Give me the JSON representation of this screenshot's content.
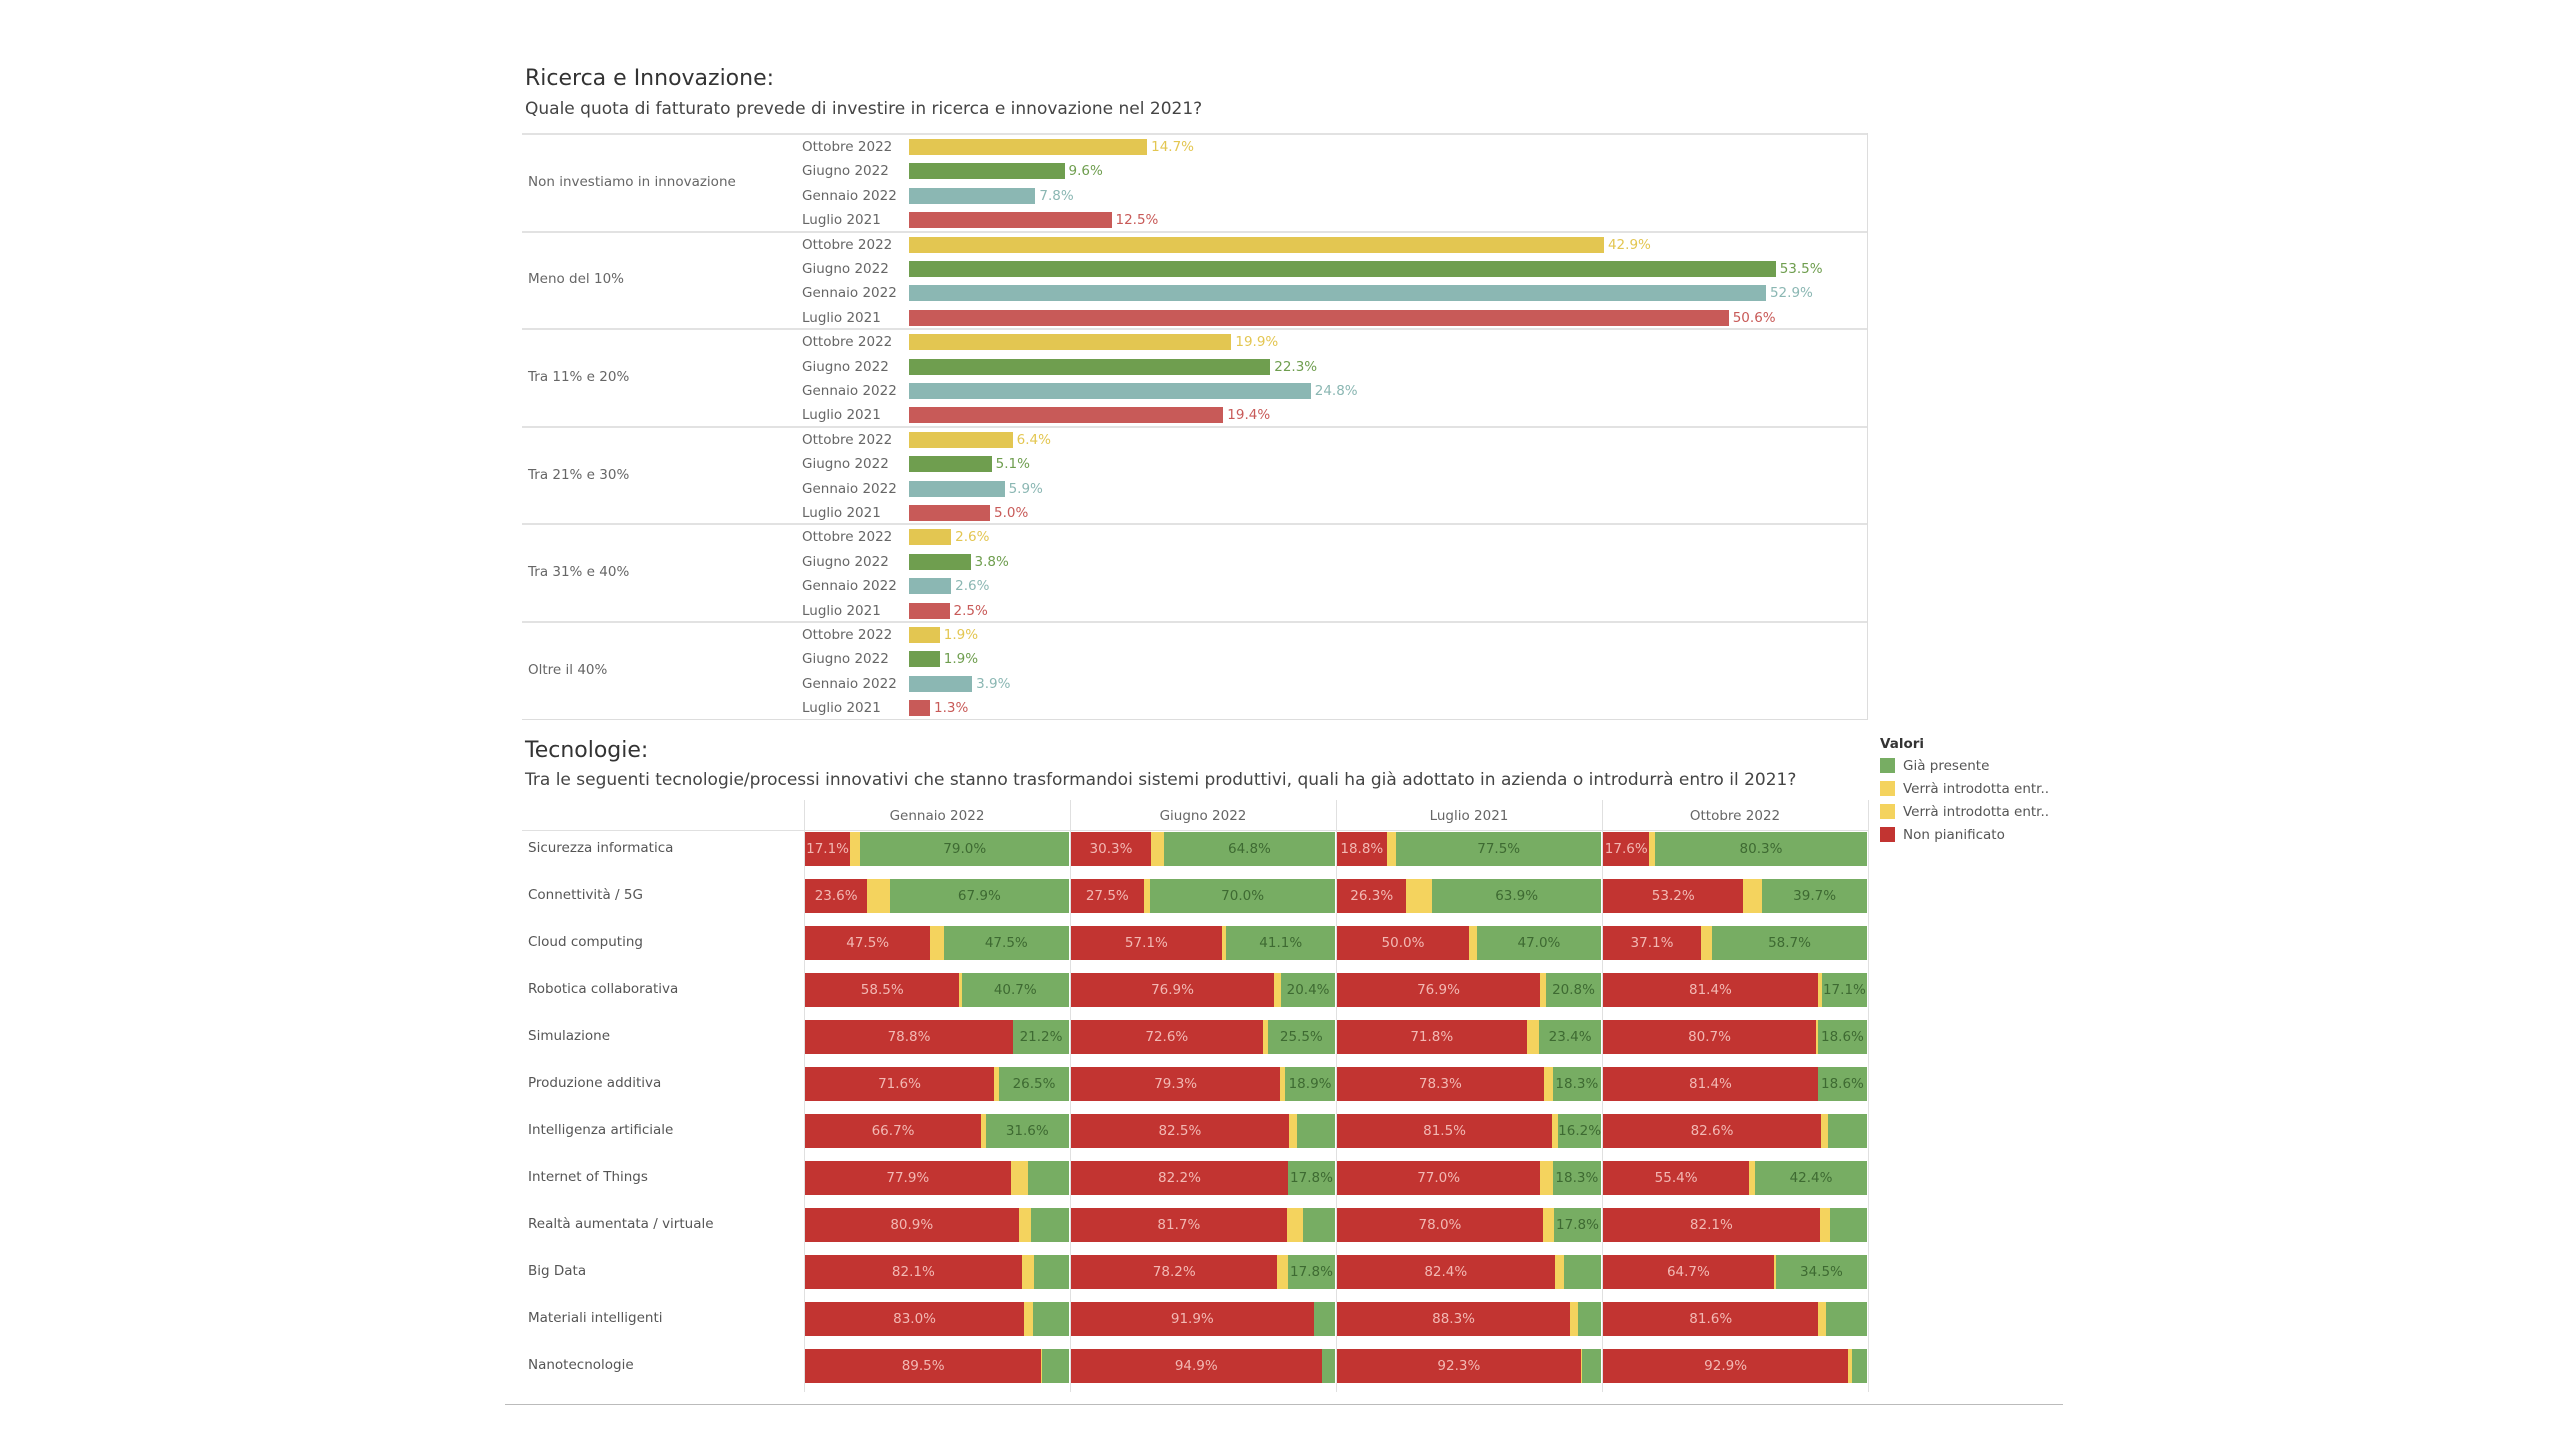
{
  "chart_data": [
    {
      "type": "bar",
      "orientation": "horizontal",
      "title": "Ricerca e Innovazione:",
      "subtitle": "Quale quota di fatturato prevede di investire in ricerca e innovazione nel 2021?",
      "categories": [
        "Non investiamo in innovazione",
        "Meno del 10%",
        "Tra 11% e 20%",
        "Tra 21% e 30%",
        "Tra 31% e 40%",
        "Oltre il 40%"
      ],
      "periods": [
        "Ottobre 2022",
        "Giugno 2022",
        "Gennaio 2022",
        "Luglio 2021"
      ],
      "period_colors": [
        "#e3c651",
        "#6f9e4f",
        "#8bb7b3",
        "#c85a58"
      ],
      "value_colors": [
        "#e3c651",
        "#6f9e4f",
        "#8bb7b3",
        "#c85a58"
      ],
      "values": [
        [
          14.7,
          9.6,
          7.8,
          12.5
        ],
        [
          42.9,
          53.5,
          52.9,
          50.6
        ],
        [
          19.9,
          22.3,
          24.8,
          19.4
        ],
        [
          6.4,
          5.1,
          5.9,
          5.0
        ],
        [
          2.6,
          3.8,
          2.6,
          2.5
        ],
        [
          1.9,
          1.9,
          3.9,
          1.3
        ]
      ],
      "unit": "%",
      "grid": false
    },
    {
      "type": "bar",
      "orientation": "horizontal",
      "stacked": "100%",
      "title": "Tecnologie:",
      "subtitle": "Tra le seguenti tecnologie/processi innovativi che stanno trasformandoi sistemi produttivi, quali ha già adottato in azienda o introdurrà entro il 2021?",
      "columns": [
        "Gennaio 2022",
        "Giugno 2022",
        "Luglio 2021",
        "Ottobre 2022"
      ],
      "categories": [
        "Sicurezza informatica",
        "Connettività / 5G",
        "Cloud computing",
        "Robotica collaborativa",
        "Simulazione",
        "Produzione additiva",
        "Intelligenza artificiale",
        "Internet of Things",
        "Realtà aumentata / virtuale",
        "Big Data",
        "Materiali intelligenti",
        "Nanotecnologie"
      ],
      "legend_title": "Valori",
      "legend": [
        {
          "name": "Già presente",
          "color": "#77ad63"
        },
        {
          "name": "Verrà introdotta entr..",
          "color": "#f4d35e"
        },
        {
          "name": "Verrà introdotta entr..",
          "color": "#f4d35e"
        },
        {
          "name": "Non pianificato",
          "color": "#c23431"
        }
      ],
      "legend_placement": "right",
      "series_order": [
        "Non pianificato",
        "Verrà introdotta",
        "Già presente"
      ],
      "series_colors": [
        "#c23431",
        "#f4d35e",
        "#77ad63"
      ],
      "values": [
        [
          [
            17.1,
            3.9,
            79.0
          ],
          [
            30.3,
            4.9,
            64.8
          ],
          [
            18.8,
            3.7,
            77.5
          ],
          [
            17.6,
            2.1,
            80.3
          ]
        ],
        [
          [
            23.6,
            8.5,
            67.9
          ],
          [
            27.5,
            2.5,
            70.0
          ],
          [
            26.3,
            9.8,
            63.9
          ],
          [
            53.2,
            7.1,
            39.7
          ]
        ],
        [
          [
            47.5,
            5.0,
            47.5
          ],
          [
            57.1,
            1.8,
            41.1
          ],
          [
            50.0,
            3.0,
            47.0
          ],
          [
            37.1,
            4.2,
            58.7
          ]
        ],
        [
          [
            58.5,
            0.8,
            40.7
          ],
          [
            76.9,
            2.7,
            20.4
          ],
          [
            76.9,
            2.3,
            20.8
          ],
          [
            81.4,
            1.5,
            17.1
          ]
        ],
        [
          [
            78.8,
            0.0,
            21.2
          ],
          [
            72.6,
            1.9,
            25.5
          ],
          [
            71.8,
            4.8,
            23.4
          ],
          [
            80.7,
            0.7,
            18.6
          ]
        ],
        [
          [
            71.6,
            1.9,
            26.5
          ],
          [
            79.3,
            1.8,
            18.9
          ],
          [
            78.3,
            3.4,
            18.3
          ],
          [
            81.4,
            0.0,
            18.6
          ]
        ],
        [
          [
            66.7,
            1.7,
            31.6
          ],
          [
            82.5,
            3.0,
            14.5
          ],
          [
            81.5,
            2.3,
            16.2
          ],
          [
            82.6,
            2.5,
            14.9
          ]
        ],
        [
          [
            77.9,
            6.5,
            15.6
          ],
          [
            82.2,
            0.0,
            17.8
          ],
          [
            77.0,
            4.7,
            18.3
          ],
          [
            55.4,
            2.2,
            42.4
          ]
        ],
        [
          [
            80.9,
            4.8,
            14.3
          ],
          [
            81.7,
            6.0,
            12.3
          ],
          [
            78.0,
            4.2,
            17.8
          ],
          [
            82.1,
            4.0,
            13.9
          ]
        ],
        [
          [
            82.1,
            4.5,
            13.4
          ],
          [
            78.2,
            4.0,
            17.8
          ],
          [
            82.4,
            3.5,
            14.1
          ],
          [
            64.7,
            0.8,
            34.5
          ]
        ],
        [
          [
            83.0,
            3.5,
            13.5
          ],
          [
            91.9,
            0.2,
            7.9
          ],
          [
            88.3,
            3.0,
            8.7
          ],
          [
            81.6,
            3.0,
            15.4
          ]
        ],
        [
          [
            89.5,
            0.3,
            10.2
          ],
          [
            94.9,
            0.1,
            5.0
          ],
          [
            92.3,
            0.5,
            7.2
          ],
          [
            92.9,
            1.5,
            5.6
          ]
        ]
      ],
      "unit": "%",
      "grid": false
    }
  ]
}
